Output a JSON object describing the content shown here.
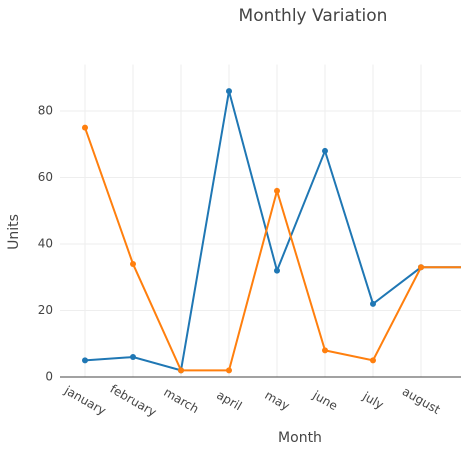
{
  "chart_data": {
    "type": "line",
    "title": "Monthly Variation",
    "x_label": "Month",
    "y_label": "Units",
    "categories": [
      "january",
      "february",
      "march",
      "april",
      "may",
      "june",
      "july",
      "august",
      null
    ],
    "series": [
      {
        "color": "#1f77b4",
        "values": [
          5,
          6,
          2,
          86,
          32,
          68,
          22,
          33,
          33
        ]
      },
      {
        "color": "#ff7f0e",
        "values": [
          75,
          34,
          2,
          2,
          56,
          8,
          5,
          33,
          33
        ]
      }
    ],
    "ylim": [
      0,
      94
    ],
    "yticks": [
      0,
      20,
      40,
      60,
      80
    ],
    "grid": true
  }
}
